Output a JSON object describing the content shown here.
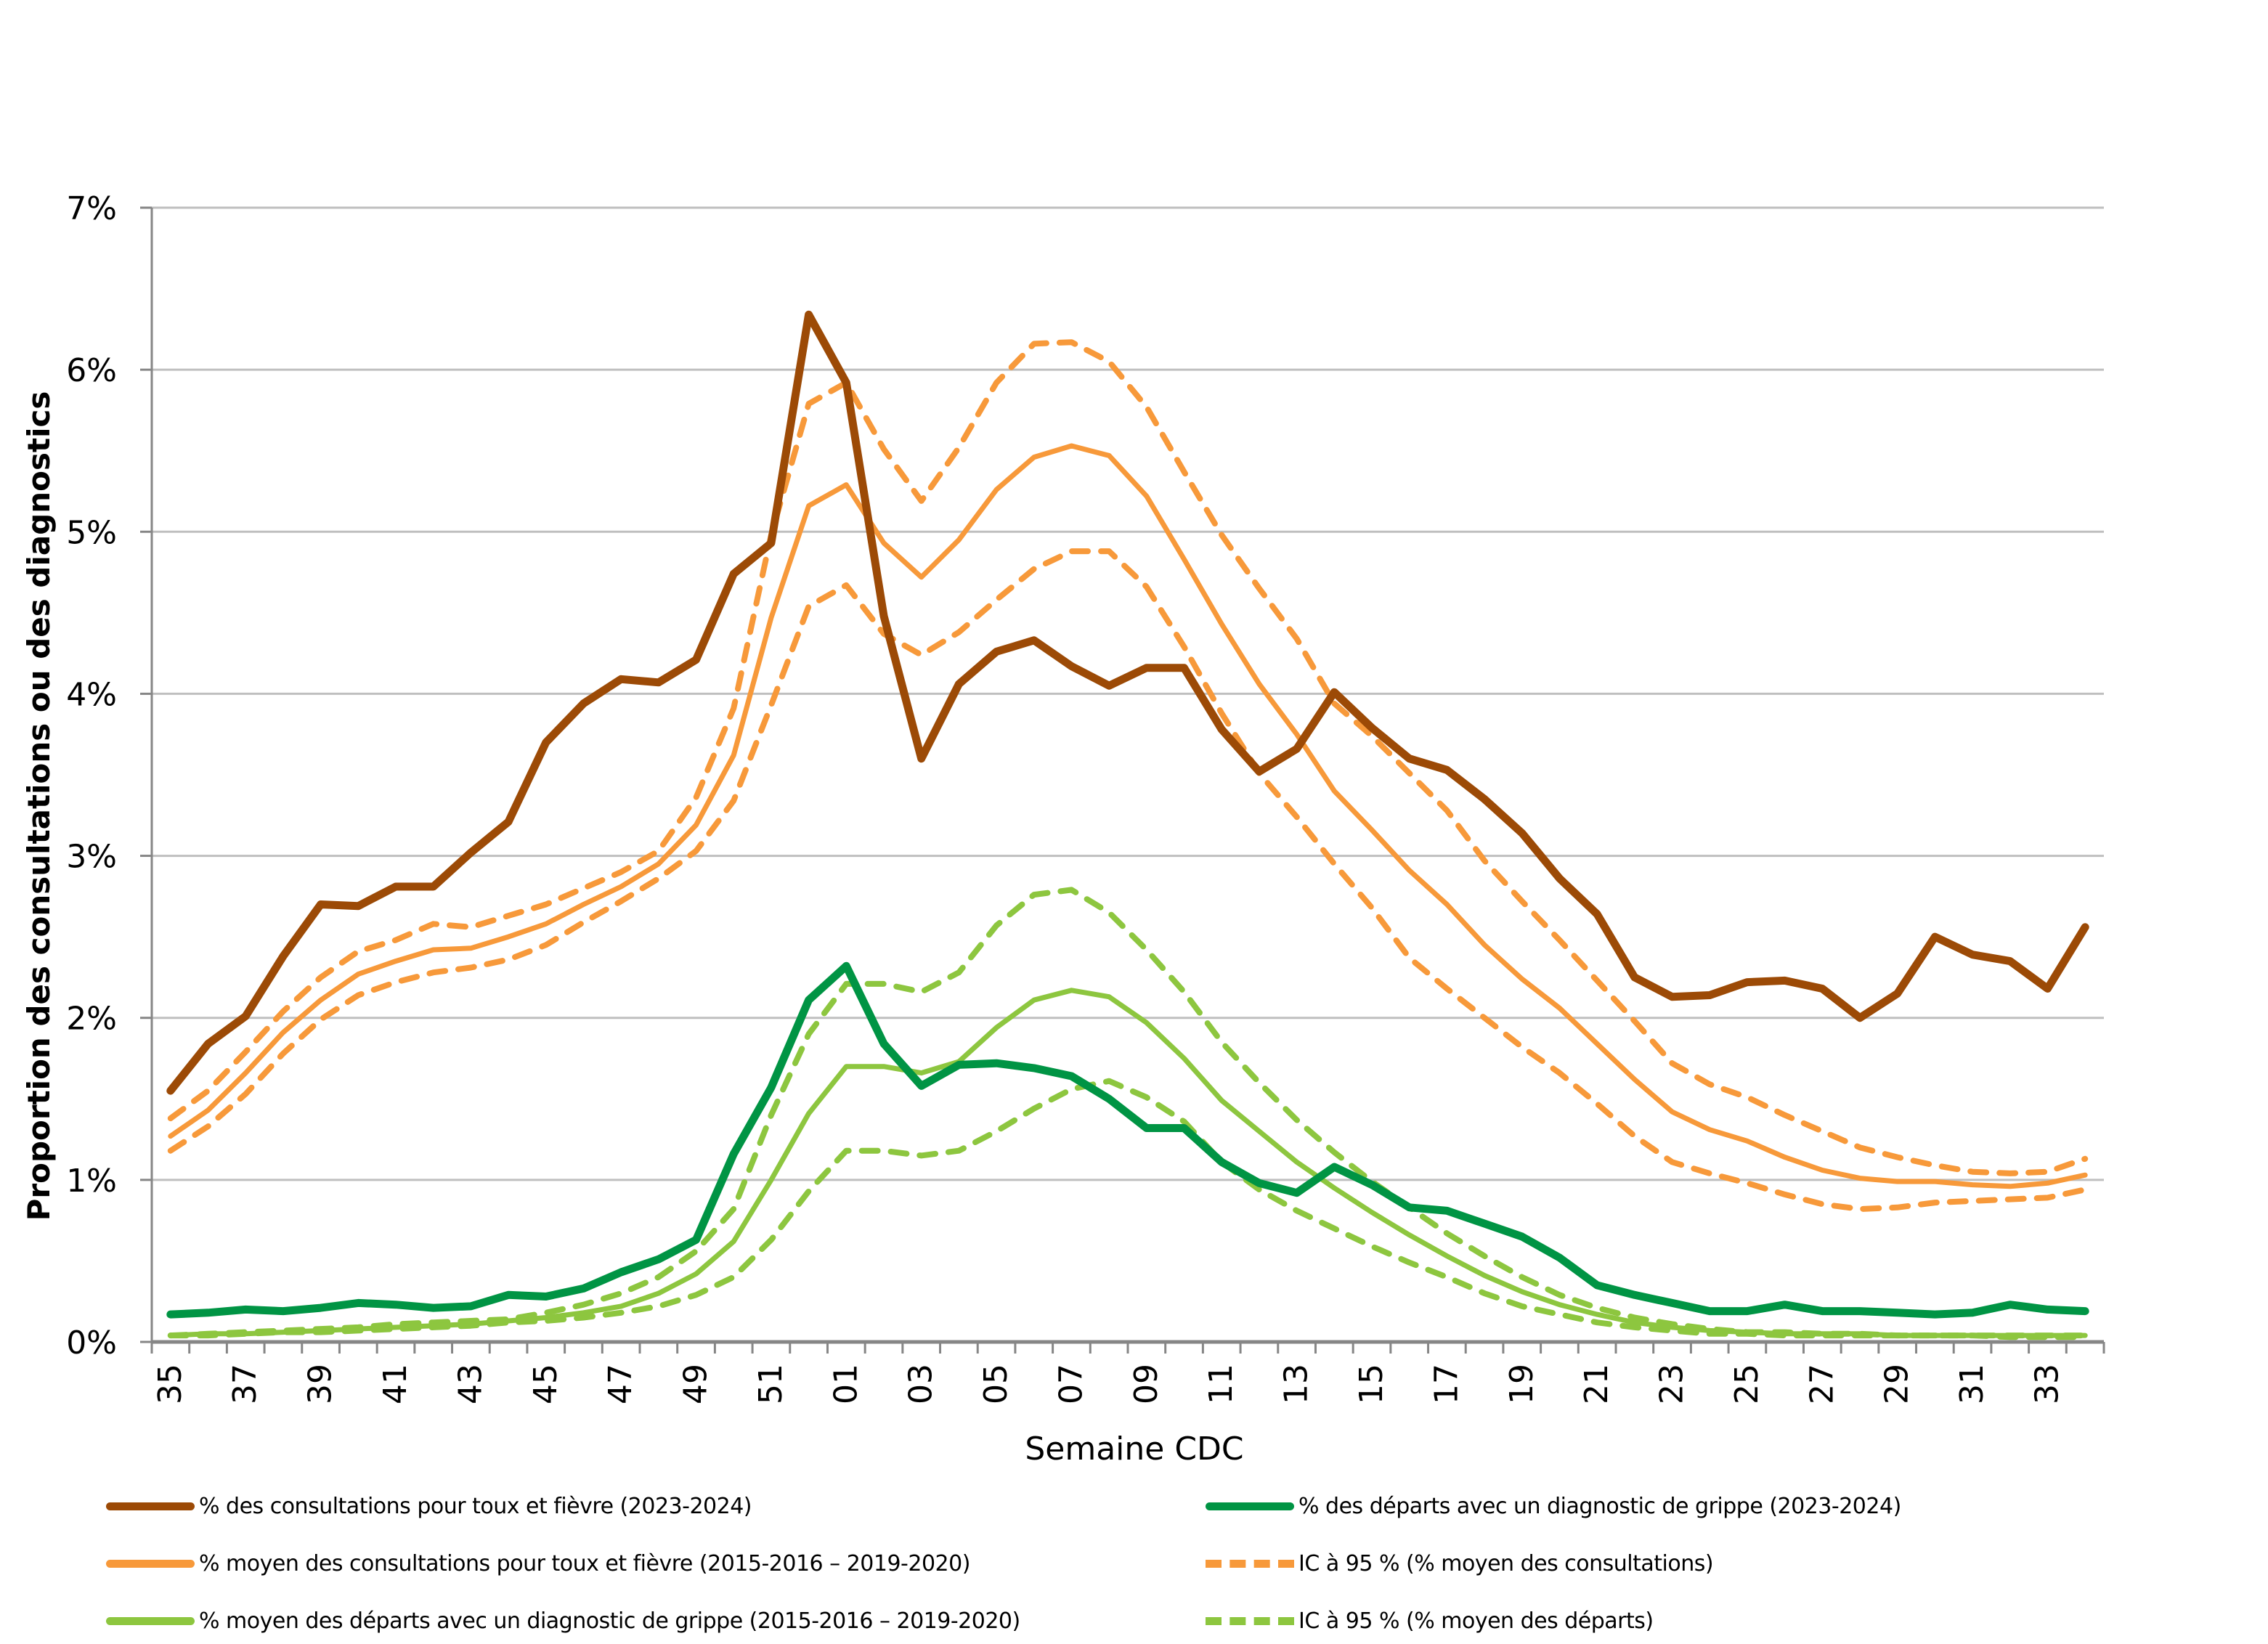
{
  "chart_data": {
    "type": "line",
    "title": "",
    "xlabel": "Semaine CDC",
    "ylabel": "Proportion des consultations ou des diagnostics",
    "ylim": [
      0,
      7
    ],
    "y_ticks": [
      "0%",
      "1%",
      "2%",
      "3%",
      "4%",
      "5%",
      "6%",
      "7%"
    ],
    "grid": "horizontal",
    "legend_position": "bottom",
    "x": [
      "35",
      "36",
      "37",
      "38",
      "39",
      "40",
      "41",
      "42",
      "43",
      "44",
      "45",
      "46",
      "47",
      "48",
      "49",
      "50",
      "51",
      "52",
      "01",
      "02",
      "03",
      "04",
      "05",
      "06",
      "07",
      "08",
      "09",
      "10",
      "11",
      "12",
      "13",
      "14",
      "15",
      "16",
      "17",
      "18",
      "19",
      "20",
      "21",
      "22",
      "23",
      "24",
      "25",
      "26",
      "27",
      "28",
      "29",
      "30",
      "31",
      "32",
      "33",
      "34"
    ],
    "x_tick_labels": [
      "35",
      "37",
      "39",
      "41",
      "43",
      "45",
      "47",
      "49",
      "51",
      "01",
      "03",
      "05",
      "07",
      "09",
      "11",
      "13",
      "15",
      "17",
      "19",
      "21",
      "23",
      "25",
      "27",
      "29",
      "31",
      "33"
    ],
    "series": [
      {
        "name": "% des consultations pour toux et fièvre (2023-2024)",
        "color": "#9C4A06",
        "style": "solid",
        "weight": "heavy",
        "values": [
          1.55,
          1.84,
          2.01,
          2.38,
          2.7,
          2.69,
          2.81,
          2.81,
          3.02,
          3.21,
          3.7,
          3.94,
          4.09,
          4.07,
          4.21,
          4.74,
          4.93,
          6.34,
          5.92,
          4.48,
          3.6,
          4.06,
          4.26,
          4.33,
          4.17,
          4.05,
          4.16,
          4.16,
          3.78,
          3.52,
          3.66,
          4.01,
          3.79,
          3.6,
          3.53,
          3.35,
          3.14,
          2.86,
          2.64,
          2.25,
          2.13,
          2.14,
          2.22,
          2.23,
          2.18,
          2.0,
          2.15,
          2.5,
          2.39,
          2.35,
          2.18,
          2.56
        ]
      },
      {
        "name": "% des départs avec un diagnostic de grippe (2023-2024)",
        "color": "#009444",
        "style": "solid",
        "weight": "heavy",
        "values": [
          0.17,
          0.18,
          0.2,
          0.19,
          0.21,
          0.24,
          0.23,
          0.21,
          0.22,
          0.29,
          0.28,
          0.33,
          0.43,
          0.51,
          0.63,
          1.16,
          1.57,
          2.11,
          2.32,
          1.84,
          1.58,
          1.71,
          1.72,
          1.69,
          1.64,
          1.5,
          1.32,
          1.32,
          1.11,
          0.98,
          0.92,
          1.08,
          0.97,
          0.83,
          0.81,
          0.73,
          0.65,
          0.52,
          0.35,
          0.29,
          0.24,
          0.19,
          0.19,
          0.23,
          0.19,
          0.19,
          0.18,
          0.17,
          0.18,
          0.23,
          0.2,
          0.19
        ]
      },
      {
        "name": "% moyen des consultations pour toux et fièvre (2015-2016 – 2019-2020)",
        "color": "#F7993A",
        "style": "solid",
        "weight": "normal",
        "values": [
          1.27,
          1.43,
          1.66,
          1.91,
          2.11,
          2.27,
          2.35,
          2.42,
          2.43,
          2.5,
          2.58,
          2.7,
          2.81,
          2.95,
          3.19,
          3.62,
          4.47,
          5.16,
          5.29,
          4.93,
          4.72,
          4.95,
          5.26,
          5.46,
          5.53,
          5.47,
          5.22,
          4.83,
          4.43,
          4.06,
          3.75,
          3.4,
          3.16,
          2.91,
          2.7,
          2.45,
          2.24,
          2.06,
          1.84,
          1.62,
          1.42,
          1.31,
          1.24,
          1.14,
          1.06,
          1.01,
          0.99,
          0.99,
          0.97,
          0.96,
          0.98,
          1.03
        ]
      },
      {
        "name": "IC à 95 % (% moyen des consultations)",
        "color": "#F7993A",
        "style": "dashed",
        "weight": "normal",
        "upper": [
          1.38,
          1.55,
          1.79,
          2.04,
          2.25,
          2.41,
          2.48,
          2.58,
          2.56,
          2.63,
          2.7,
          2.8,
          2.9,
          3.03,
          3.36,
          3.91,
          4.98,
          5.79,
          5.92,
          5.51,
          5.19,
          5.52,
          5.92,
          6.16,
          6.17,
          6.05,
          5.77,
          5.37,
          4.98,
          4.65,
          4.34,
          3.94,
          3.74,
          3.51,
          3.28,
          2.97,
          2.72,
          2.48,
          2.23,
          1.98,
          1.72,
          1.59,
          1.51,
          1.4,
          1.3,
          1.2,
          1.14,
          1.09,
          1.05,
          1.04,
          1.05,
          1.13
        ],
        "lower": [
          1.18,
          1.33,
          1.53,
          1.78,
          1.99,
          2.14,
          2.22,
          2.28,
          2.31,
          2.36,
          2.45,
          2.59,
          2.72,
          2.86,
          3.03,
          3.34,
          3.93,
          4.54,
          4.67,
          4.37,
          4.24,
          4.38,
          4.58,
          4.77,
          4.88,
          4.88,
          4.66,
          4.29,
          3.88,
          3.51,
          3.24,
          2.95,
          2.68,
          2.37,
          2.18,
          2.0,
          1.82,
          1.66,
          1.47,
          1.27,
          1.11,
          1.04,
          0.98,
          0.91,
          0.85,
          0.82,
          0.83,
          0.86,
          0.87,
          0.88,
          0.89,
          0.94
        ]
      },
      {
        "name": "% moyen des départs avec un diagnostic de grippe (2015-2016 – 2019-2020)",
        "color": "#8DC63F",
        "style": "solid",
        "weight": "normal",
        "values": [
          0.04,
          0.05,
          0.05,
          0.06,
          0.07,
          0.08,
          0.09,
          0.1,
          0.11,
          0.13,
          0.15,
          0.18,
          0.22,
          0.3,
          0.42,
          0.62,
          1.0,
          1.41,
          1.7,
          1.7,
          1.66,
          1.73,
          1.94,
          2.11,
          2.17,
          2.13,
          1.97,
          1.75,
          1.49,
          1.3,
          1.11,
          0.95,
          0.8,
          0.66,
          0.53,
          0.41,
          0.31,
          0.23,
          0.17,
          0.12,
          0.09,
          0.07,
          0.06,
          0.05,
          0.05,
          0.05,
          0.04,
          0.04,
          0.04,
          0.04,
          0.04,
          0.04
        ]
      },
      {
        "name": "IC à 95 % (% moyen des départs)",
        "color": "#8DC63F",
        "style": "dashed",
        "weight": "normal",
        "upper": [
          0.04,
          0.05,
          0.06,
          0.07,
          0.08,
          0.09,
          0.11,
          0.12,
          0.13,
          0.14,
          0.18,
          0.23,
          0.3,
          0.4,
          0.56,
          0.82,
          1.4,
          1.9,
          2.21,
          2.21,
          2.16,
          2.28,
          2.57,
          2.76,
          2.79,
          2.65,
          2.42,
          2.16,
          1.85,
          1.6,
          1.37,
          1.17,
          0.99,
          0.83,
          0.67,
          0.53,
          0.4,
          0.29,
          0.21,
          0.15,
          0.11,
          0.08,
          0.06,
          0.06,
          0.05,
          0.05,
          0.04,
          0.04,
          0.04,
          0.04,
          0.04,
          0.04
        ],
        "lower": [
          0.04,
          0.04,
          0.05,
          0.06,
          0.06,
          0.07,
          0.08,
          0.09,
          0.1,
          0.12,
          0.13,
          0.15,
          0.18,
          0.22,
          0.29,
          0.4,
          0.63,
          0.93,
          1.18,
          1.18,
          1.15,
          1.18,
          1.3,
          1.44,
          1.56,
          1.61,
          1.51,
          1.36,
          1.11,
          0.94,
          0.81,
          0.7,
          0.59,
          0.49,
          0.4,
          0.3,
          0.22,
          0.17,
          0.12,
          0.09,
          0.07,
          0.05,
          0.05,
          0.04,
          0.04,
          0.04,
          0.04,
          0.04,
          0.04,
          0.03,
          0.03,
          0.03
        ]
      }
    ]
  },
  "legend": {
    "items": [
      {
        "label": "% des consultations pour toux et fièvre (2023-2024)",
        "color": "#9C4A06",
        "style": "solid"
      },
      {
        "label": "% des départs avec un diagnostic de grippe (2023-2024)",
        "color": "#009444",
        "style": "solid"
      },
      {
        "label": "% moyen des consultations pour toux et fièvre (2015-2016 – 2019-2020)",
        "color": "#F7993A",
        "style": "solid"
      },
      {
        "label": "IC à 95 % (% moyen des consultations)",
        "color": "#F7993A",
        "style": "dashed"
      },
      {
        "label": "% moyen des départs avec un diagnostic de grippe (2015-2016 – 2019-2020)",
        "color": "#8DC63F",
        "style": "solid"
      },
      {
        "label": "IC à 95 % (% moyen des départs)",
        "color": "#8DC63F",
        "style": "dashed"
      }
    ]
  }
}
